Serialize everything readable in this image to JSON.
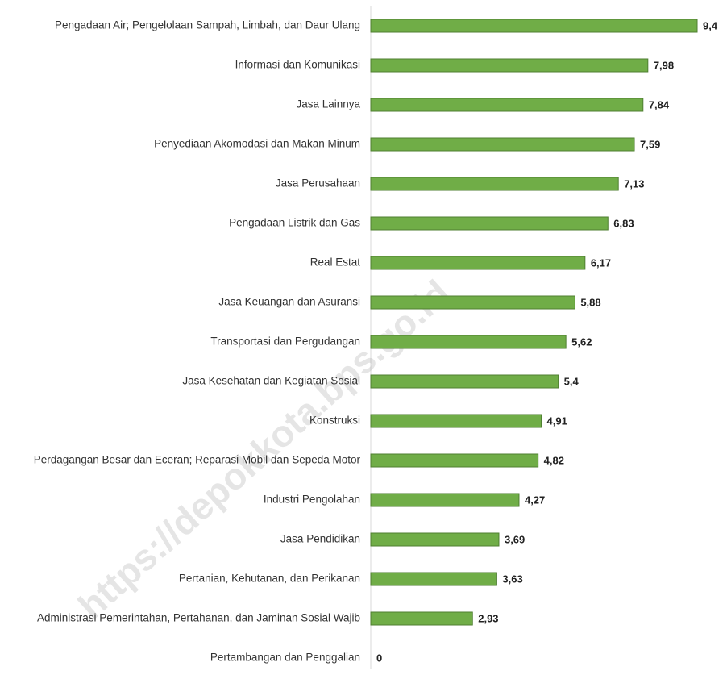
{
  "chart_data": {
    "type": "bar",
    "orientation": "horizontal",
    "categories": [
      "Pengadaan Air; Pengelolaan Sampah, Limbah, dan Daur Ulang",
      "Informasi dan Komunikasi",
      "Jasa Lainnya",
      "Penyediaan Akomodasi dan Makan Minum",
      "Jasa Perusahaan",
      "Pengadaan Listrik dan Gas",
      "Real Estat",
      "Jasa Keuangan dan Asuransi",
      "Transportasi dan Pergudangan",
      "Jasa Kesehatan dan Kegiatan Sosial",
      "Konstruksi",
      "Perdagangan Besar dan Eceran; Reparasi Mobil dan Sepeda Motor",
      "Industri Pengolahan",
      "Jasa Pendidikan",
      "Pertanian, Kehutanan, dan Perikanan",
      "Administrasi Pemerintahan, Pertahanan, dan Jaminan Sosial Wajib",
      "Pertambangan dan Penggalian"
    ],
    "values": [
      9.4,
      7.98,
      7.84,
      7.59,
      7.13,
      6.83,
      6.17,
      5.88,
      5.62,
      5.4,
      4.91,
      4.82,
      4.27,
      3.69,
      3.63,
      2.93,
      0
    ],
    "value_labels": [
      "9,4",
      "7,98",
      "7,84",
      "7,59",
      "7,13",
      "6,83",
      "6,17",
      "5,88",
      "5,62",
      "5,4",
      "4,91",
      "4,82",
      "4,27",
      "3,69",
      "3,63",
      "2,93",
      "0"
    ],
    "color": "#70ad47",
    "watermark": "https://depokkota.bps.go.id"
  }
}
